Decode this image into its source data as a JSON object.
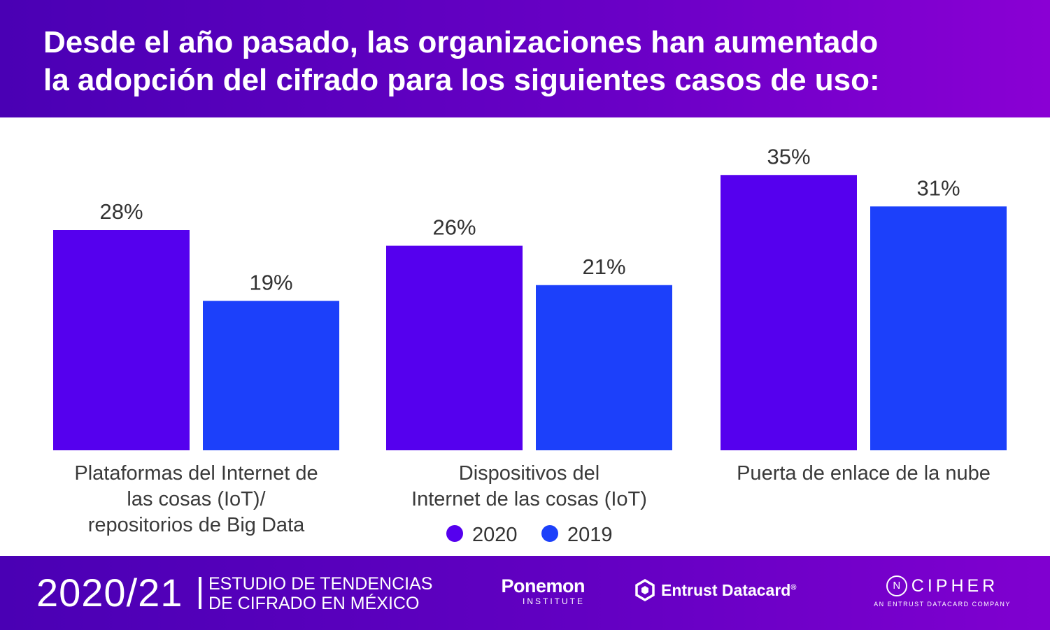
{
  "header": {
    "title_line1": "Desde el año pasado, las organizaciones han aumentado",
    "title_line2": "la adopción del cifrado para los siguientes casos de uso:"
  },
  "chart_data": {
    "type": "bar",
    "title": "Desde el año pasado, las organizaciones han aumentado la adopción del cifrado para los siguientes casos de uso:",
    "categories": [
      [
        "Plataformas del Internet de",
        "las cosas (IoT)/",
        "repositorios de Big Data"
      ],
      [
        "Dispositivos del",
        "Internet de las cosas (IoT)"
      ],
      [
        "Puerta de enlace de la nube"
      ]
    ],
    "series": [
      {
        "name": "2020",
        "color": "#5500ee",
        "values": [
          28,
          26,
          35
        ],
        "labels": [
          "28%",
          "26%",
          "35%"
        ]
      },
      {
        "name": "2019",
        "color": "#1c40fa",
        "values": [
          19,
          21,
          31
        ],
        "labels": [
          "19%",
          "21%",
          "31%"
        ]
      }
    ],
    "ylim": [
      0,
      40
    ],
    "xlabel": "",
    "ylabel": "",
    "grid": false,
    "legend": "bottom-center"
  },
  "footer": {
    "year": "2020/21",
    "study_line1": "ESTUDIO DE TENDENCIAS",
    "study_line2": "DE CIFRADO EN MÉXICO",
    "ponemon_name": "Ponemon",
    "ponemon_sub": "INSTITUTE",
    "entrust_name": "Entrust Datacard",
    "entrust_mark": "®",
    "ncipher_letter": "N",
    "ncipher_name": "CIPHER",
    "ncipher_sub": "AN ENTRUST DATACARD COMPANY"
  }
}
